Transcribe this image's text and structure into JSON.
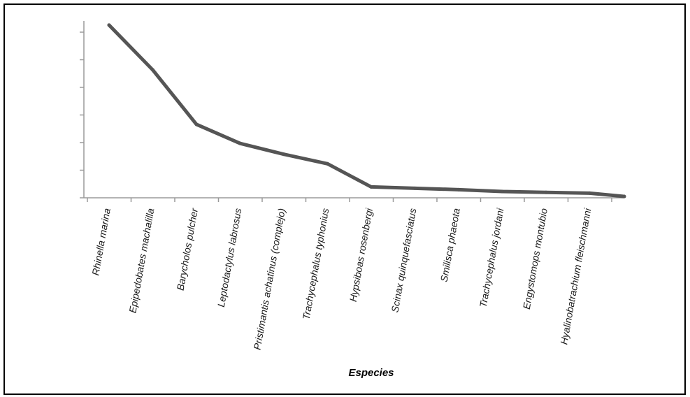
{
  "chart_data": {
    "type": "line",
    "title": "",
    "xlabel": "Especies",
    "ylabel": "",
    "ylim": [
      0,
      6.5
    ],
    "y_tick_labels_shown": false,
    "grid": false,
    "legend": "none",
    "categories": [
      "Rhinella marina",
      "Epipedobates machalilla",
      "Barycholos pulcher",
      "Leptodactylus labrosus",
      "Pristimantis achatinus (complejo)",
      "Trachycephalus typhonius",
      "Hypsiboas rosenbergi",
      "Scinax quinquefasciatus",
      "Smilisca phaeota",
      "Trachycephalus jordani",
      "Engystomops montubio",
      "Hyalinobatrachium fleischmanni",
      ""
    ],
    "series": [
      {
        "values": [
          6.35,
          4.7,
          2.7,
          2.0,
          1.6,
          1.25,
          0.4,
          0.35,
          0.3,
          0.23,
          0.2,
          0.17,
          0.05
        ]
      }
    ],
    "line_color": "#555555"
  }
}
